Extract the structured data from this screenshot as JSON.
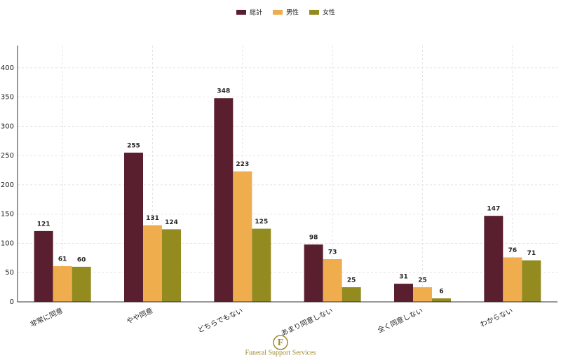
{
  "chart_data": {
    "type": "bar",
    "categories": [
      "非常に同意",
      "やや同意",
      "どちらでもない",
      "あまり同意しない",
      "全く同意しない",
      "わからない"
    ],
    "series": [
      {
        "name": "総計",
        "color": "#5a1f2e",
        "values": [
          121,
          255,
          348,
          98,
          31,
          147
        ]
      },
      {
        "name": "男性",
        "color": "#f0ad4e",
        "values": [
          61,
          131,
          223,
          73,
          25,
          76
        ]
      },
      {
        "name": "女性",
        "color": "#938a20",
        "values": [
          60,
          124,
          125,
          25,
          6,
          71
        ]
      }
    ],
    "ylim": [
      0,
      438
    ],
    "yticks": [
      0,
      50,
      100,
      150,
      200,
      250,
      300,
      350,
      400
    ],
    "grid": true,
    "legend": "top"
  },
  "footer": {
    "logo_letter": "F",
    "text": "Funeral Support Services"
  }
}
